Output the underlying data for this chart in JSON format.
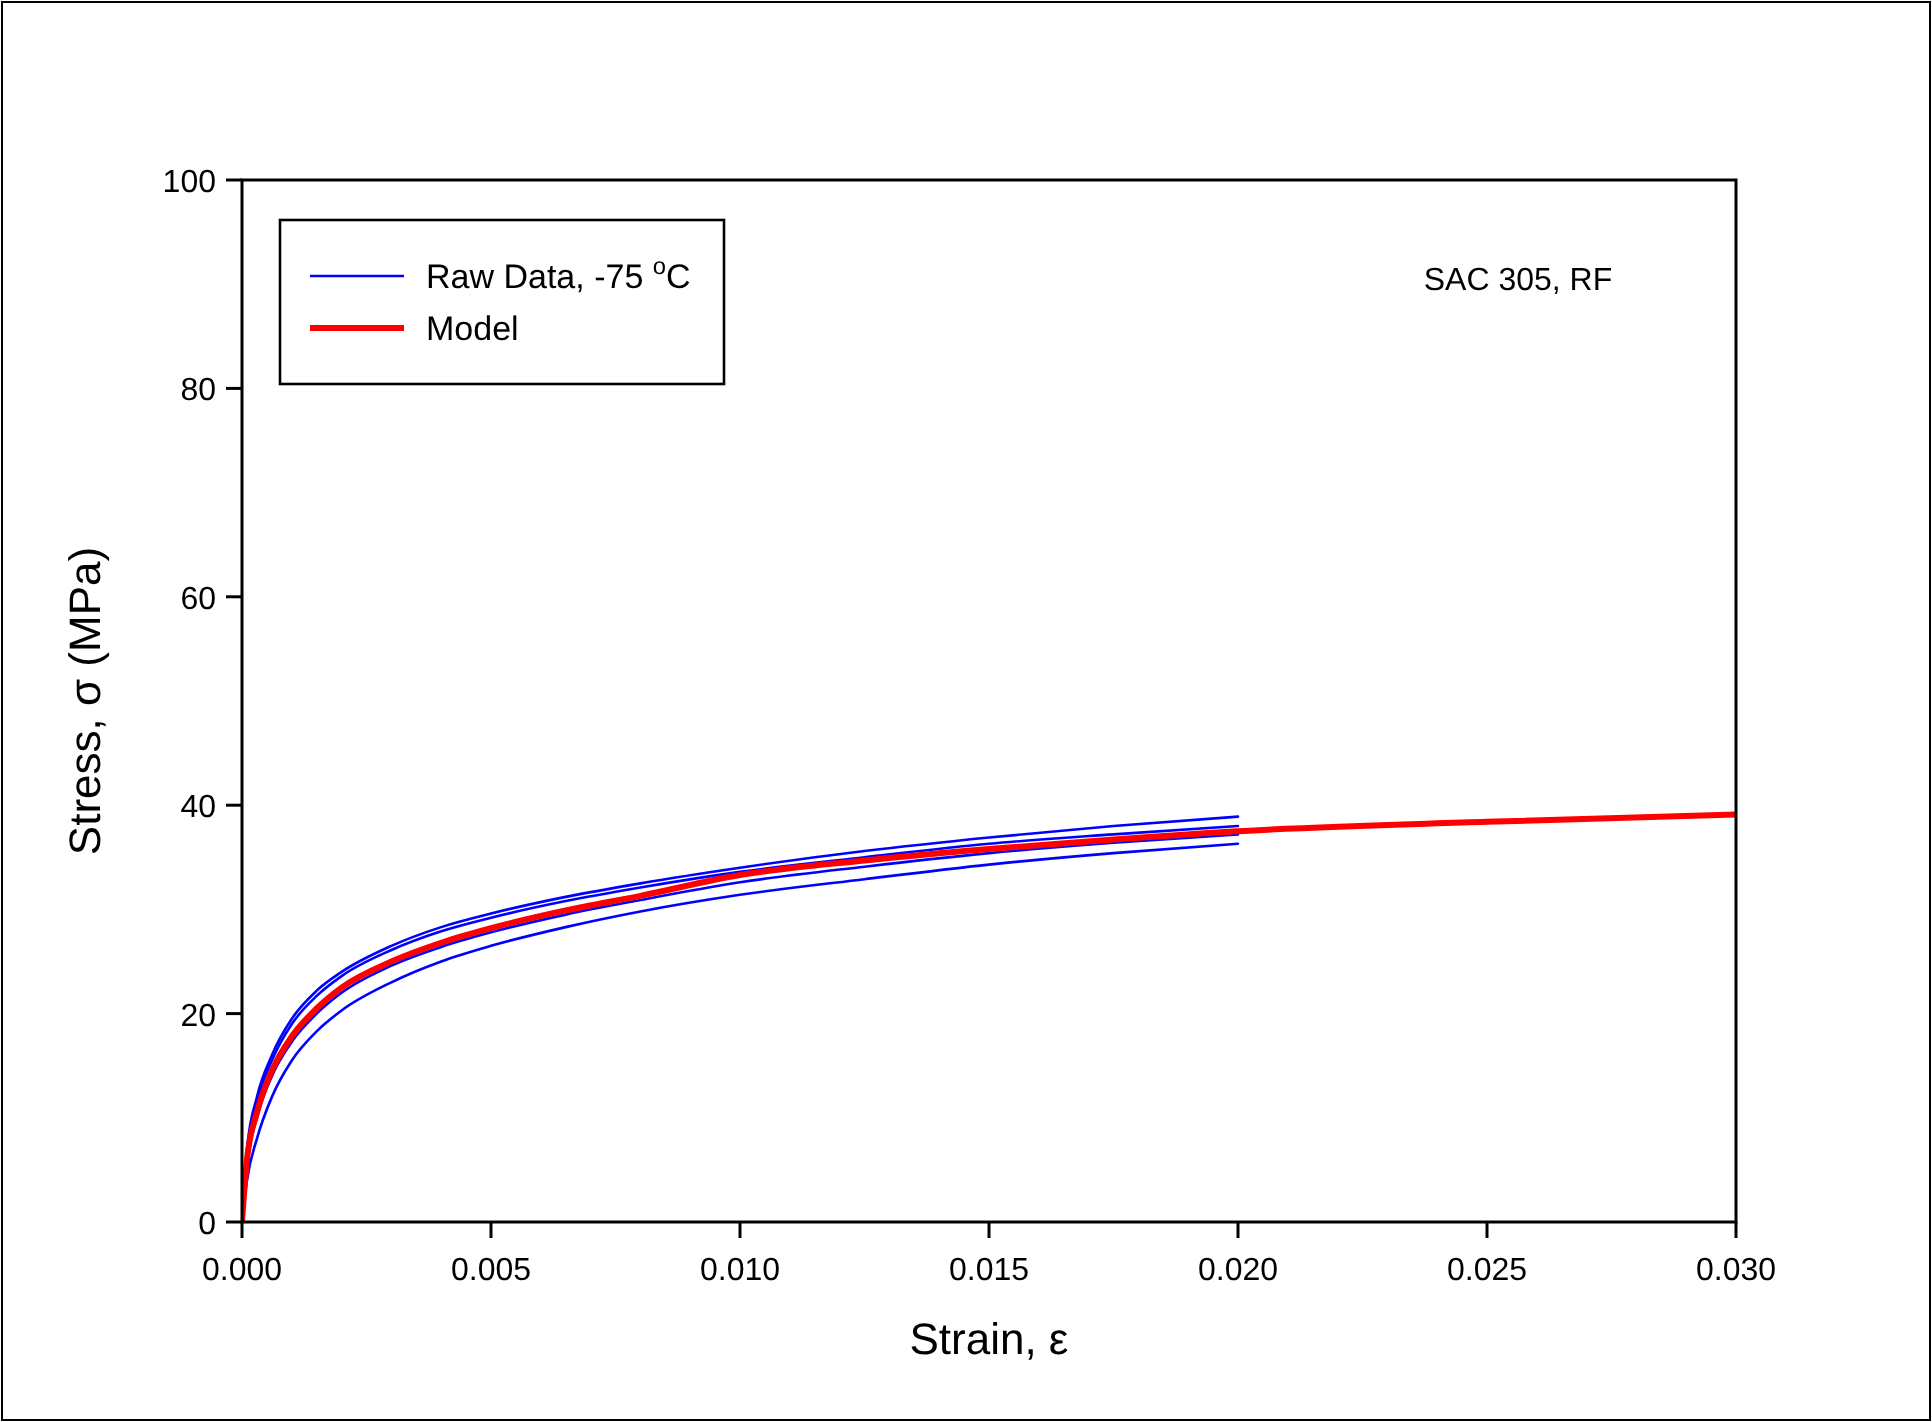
{
  "chart_data": {
    "type": "line",
    "xlabel": "Strain, ε",
    "ylabel": "Stress, σ (MPa)",
    "annotations": [
      "SAC 305, RF"
    ],
    "legend": "top left",
    "line_style": "solid",
    "xlim": [
      0,
      0.03
    ],
    "ylim": [
      0,
      100
    ],
    "xticks": [
      {
        "value": 0,
        "label": "0.000"
      },
      {
        "value": 0.005,
        "label": "0.005"
      },
      {
        "value": 0.01,
        "label": "0.010"
      },
      {
        "value": 0.015,
        "label": "0.015"
      },
      {
        "value": 0.02,
        "label": "0.020"
      },
      {
        "value": 0.025,
        "label": "0.025"
      },
      {
        "value": 0.03,
        "label": "0.030"
      }
    ],
    "yticks": [
      0,
      20,
      40,
      60,
      80,
      100
    ],
    "series": [
      {
        "name": "Raw Data, -75 $^{o}$C",
        "color": "#0000ff",
        "x": [
          0,
          0.0001,
          0.0003,
          0.0006,
          0.001,
          0.0015,
          0.002,
          0.003,
          0.004,
          0.005,
          0.0065,
          0.008,
          0.01,
          0.0125,
          0.015,
          0.0175,
          0.02
        ],
        "values": [
          0,
          7,
          12,
          16,
          19.5,
          22.2,
          24,
          26.5,
          28.3,
          29.6,
          31.2,
          32.5,
          34,
          35.6,
          36.9,
          38,
          38.9
        ]
      },
      {
        "color": "#0000ff",
        "x": [
          0,
          0.0001,
          0.0003,
          0.0006,
          0.001,
          0.0015,
          0.002,
          0.003,
          0.004,
          0.005,
          0.0065,
          0.008,
          0.01,
          0.0125,
          0.015,
          0.0175,
          0.02
        ],
        "values": [
          0,
          6.5,
          11.5,
          15.5,
          19,
          21.7,
          23.6,
          26.1,
          27.9,
          29.2,
          30.8,
          32.1,
          33.6,
          35,
          36.3,
          37.2,
          38
        ]
      },
      {
        "color": "#0000ff",
        "x": [
          0,
          0.0001,
          0.0003,
          0.0006,
          0.001,
          0.0015,
          0.002,
          0.003,
          0.004,
          0.005,
          0.0065,
          0.008,
          0.01,
          0.0125,
          0.015,
          0.0175,
          0.02
        ],
        "values": [
          0,
          5.5,
          10,
          14,
          17.3,
          20,
          22,
          24.6,
          26.4,
          27.8,
          29.5,
          30.9,
          32.6,
          34.1,
          35.4,
          36.4,
          37.2
        ]
      },
      {
        "color": "#0000ff",
        "x": [
          0,
          0.0001,
          0.0003,
          0.0006,
          0.001,
          0.0015,
          0.002,
          0.003,
          0.004,
          0.005,
          0.0065,
          0.008,
          0.01,
          0.0125,
          0.015,
          0.0175,
          0.02
        ],
        "values": [
          0,
          4,
          8,
          12,
          15.5,
          18.3,
          20.3,
          23,
          25,
          26.5,
          28.3,
          29.8,
          31.4,
          32.9,
          34.3,
          35.4,
          36.3
        ]
      },
      {
        "name": "Model",
        "color": "#ff0000",
        "x": [
          0,
          0.0001,
          0.0003,
          0.0006,
          0.001,
          0.0015,
          0.002,
          0.003,
          0.004,
          0.005,
          0.0065,
          0.008,
          0.01,
          0.0125,
          0.015,
          0.0175,
          0.02,
          0.025,
          0.03
        ],
        "values": [
          0,
          6,
          10.5,
          14.5,
          17.8,
          20.5,
          22.5,
          25,
          26.8,
          28.2,
          29.9,
          31.3,
          33.3,
          34.7,
          35.8,
          36.7,
          37.5,
          38.4,
          39.1
        ]
      }
    ]
  }
}
